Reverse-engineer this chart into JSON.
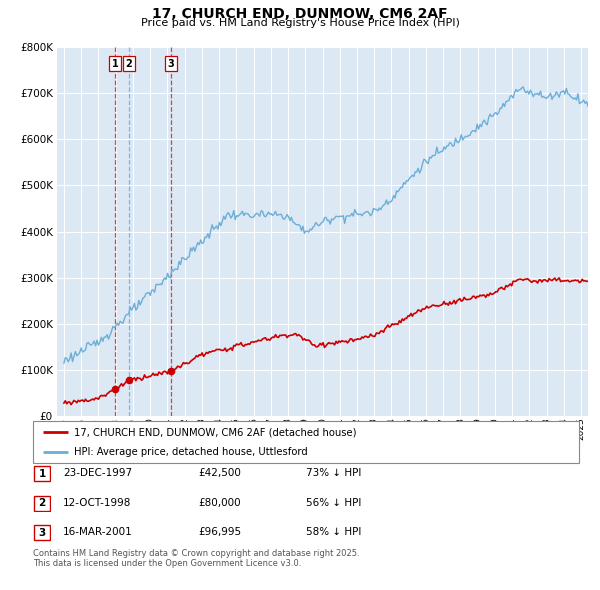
{
  "title": "17, CHURCH END, DUNMOW, CM6 2AF",
  "subtitle": "Price paid vs. HM Land Registry's House Price Index (HPI)",
  "legend_line1": "17, CHURCH END, DUNMOW, CM6 2AF (detached house)",
  "legend_line2": "HPI: Average price, detached house, Uttlesford",
  "footer1": "Contains HM Land Registry data © Crown copyright and database right 2025.",
  "footer2": "This data is licensed under the Open Government Licence v3.0.",
  "transactions": [
    {
      "id": 1,
      "date": "23-DEC-1997",
      "price": 42500,
      "price_str": "£42,500",
      "pct": "73%",
      "dir": "↓",
      "x_year": 1997.97,
      "vline_color": "#d62728"
    },
    {
      "id": 2,
      "date": "12-OCT-1998",
      "price": 80000,
      "price_str": "£80,000",
      "pct": "56%",
      "dir": "↓",
      "x_year": 1998.78,
      "vline_color": "#6baed6"
    },
    {
      "id": 3,
      "date": "16-MAR-2001",
      "price": 96995,
      "price_str": "£96,995",
      "pct": "58%",
      "dir": "↓",
      "x_year": 2001.2,
      "vline_color": "#d62728"
    }
  ],
  "hpi_color": "#6baed6",
  "price_color": "#cc0000",
  "background_color": "#dce9f5",
  "grid_color": "#ffffff",
  "ylim": [
    0,
    800000
  ],
  "xlim_start": 1994.6,
  "xlim_end": 2025.4,
  "ytick_interval": 100000
}
